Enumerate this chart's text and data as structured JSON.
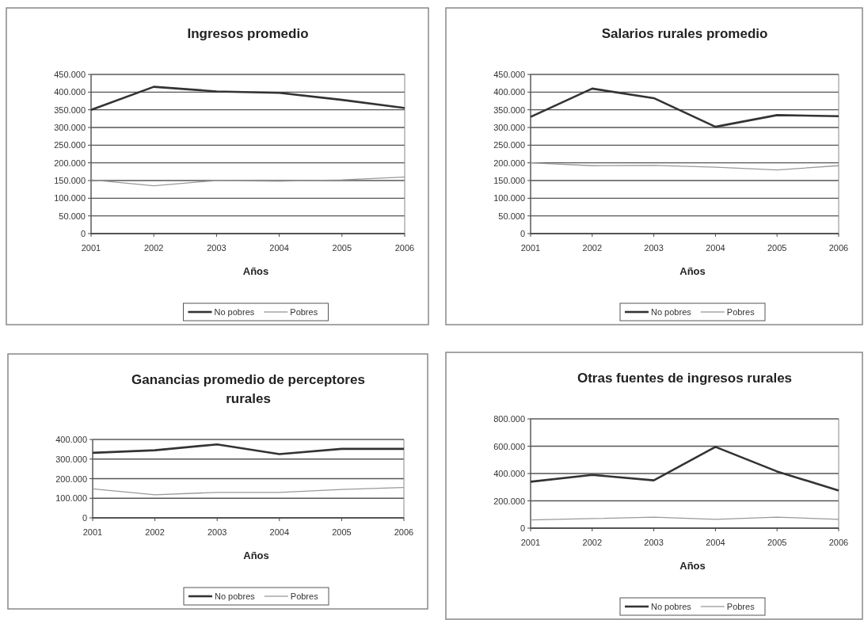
{
  "chart_data": [
    {
      "type": "line",
      "title": "Ingresos promedio",
      "xlabel": "Años",
      "categories": [
        "2001",
        "2002",
        "2003",
        "2004",
        "2005",
        "2006"
      ],
      "ylim": [
        0,
        450000
      ],
      "yticks": [
        {
          "value": 0,
          "label": "0"
        },
        {
          "value": 50000,
          "label": "50.000"
        },
        {
          "value": 100000,
          "label": "100.000"
        },
        {
          "value": 150000,
          "label": "150.000"
        },
        {
          "value": 200000,
          "label": "200.000"
        },
        {
          "value": 250000,
          "label": "250.000"
        },
        {
          "value": 300000,
          "label": "300.000"
        },
        {
          "value": 350000,
          "label": "350.000"
        },
        {
          "value": 400000,
          "label": "400.000"
        },
        {
          "value": 450000,
          "label": "450.000"
        }
      ],
      "grid": "y",
      "legend": "bottom",
      "marker": "none",
      "line_style": "solid",
      "series": [
        {
          "name": "No pobres",
          "color": "#333333",
          "values": [
            350000,
            415000,
            402000,
            398000,
            378000,
            355000
          ]
        },
        {
          "name": "Pobres",
          "color": "#999999",
          "values": [
            152000,
            135000,
            150000,
            148000,
            152000,
            160000
          ]
        }
      ]
    },
    {
      "type": "line",
      "title": "Salarios rurales promedio",
      "xlabel": "Años",
      "categories": [
        "2001",
        "2002",
        "2003",
        "2004",
        "2005",
        "2006"
      ],
      "ylim": [
        0,
        450000
      ],
      "yticks": [
        {
          "value": 0,
          "label": "0"
        },
        {
          "value": 50000,
          "label": "50.000"
        },
        {
          "value": 100000,
          "label": "100.000"
        },
        {
          "value": 150000,
          "label": "150.000"
        },
        {
          "value": 200000,
          "label": "200.000"
        },
        {
          "value": 250000,
          "label": "250.000"
        },
        {
          "value": 300000,
          "label": "300.000"
        },
        {
          "value": 350000,
          "label": "350.000"
        },
        {
          "value": 400000,
          "label": "400.000"
        },
        {
          "value": 450000,
          "label": "450.000"
        }
      ],
      "grid": "y",
      "legend": "bottom",
      "marker": "none",
      "line_style": "solid",
      "series": [
        {
          "name": "No pobres",
          "color": "#333333",
          "values": [
            330000,
            410000,
            383000,
            302000,
            335000,
            332000
          ]
        },
        {
          "name": "Pobres",
          "color": "#999999",
          "values": [
            200000,
            192000,
            193000,
            188000,
            180000,
            192000
          ]
        }
      ]
    },
    {
      "type": "line",
      "title": "Ganancias promedio de perceptores rurales",
      "xlabel": "Años",
      "categories": [
        "2001",
        "2002",
        "2003",
        "2004",
        "2005",
        "2006"
      ],
      "ylim": [
        0,
        400000
      ],
      "yticks": [
        {
          "value": 0,
          "label": "0"
        },
        {
          "value": 100000,
          "label": "100.000"
        },
        {
          "value": 200000,
          "label": "200.000"
        },
        {
          "value": 300000,
          "label": "300.000"
        },
        {
          "value": 400000,
          "label": "400.000"
        }
      ],
      "grid": "y",
      "legend": "bottom",
      "marker": "none",
      "line_style": "solid",
      "series": [
        {
          "name": "No pobres",
          "color": "#333333",
          "values": [
            332000,
            345000,
            375000,
            325000,
            352000,
            352000
          ]
        },
        {
          "name": "Pobres",
          "color": "#999999",
          "values": [
            148000,
            118000,
            130000,
            130000,
            145000,
            155000
          ]
        }
      ]
    },
    {
      "type": "line",
      "title": "Otras fuentes de ingresos rurales",
      "xlabel": "Años",
      "categories": [
        "2001",
        "2002",
        "2003",
        "2004",
        "2005",
        "2006"
      ],
      "ylim": [
        0,
        800000
      ],
      "yticks": [
        {
          "value": 0,
          "label": "0"
        },
        {
          "value": 200000,
          "label": "200.000"
        },
        {
          "value": 400000,
          "label": "400.000"
        },
        {
          "value": 600000,
          "label": "600.000"
        },
        {
          "value": 800000,
          "label": "800.000"
        }
      ],
      "grid": "y",
      "legend": "bottom",
      "marker": "none",
      "line_style": "solid",
      "series": [
        {
          "name": "No pobres",
          "color": "#333333",
          "values": [
            340000,
            390000,
            350000,
            595000,
            415000,
            275000
          ]
        },
        {
          "name": "Pobres",
          "color": "#999999",
          "values": [
            60000,
            70000,
            80000,
            65000,
            80000,
            65000
          ]
        }
      ]
    }
  ]
}
